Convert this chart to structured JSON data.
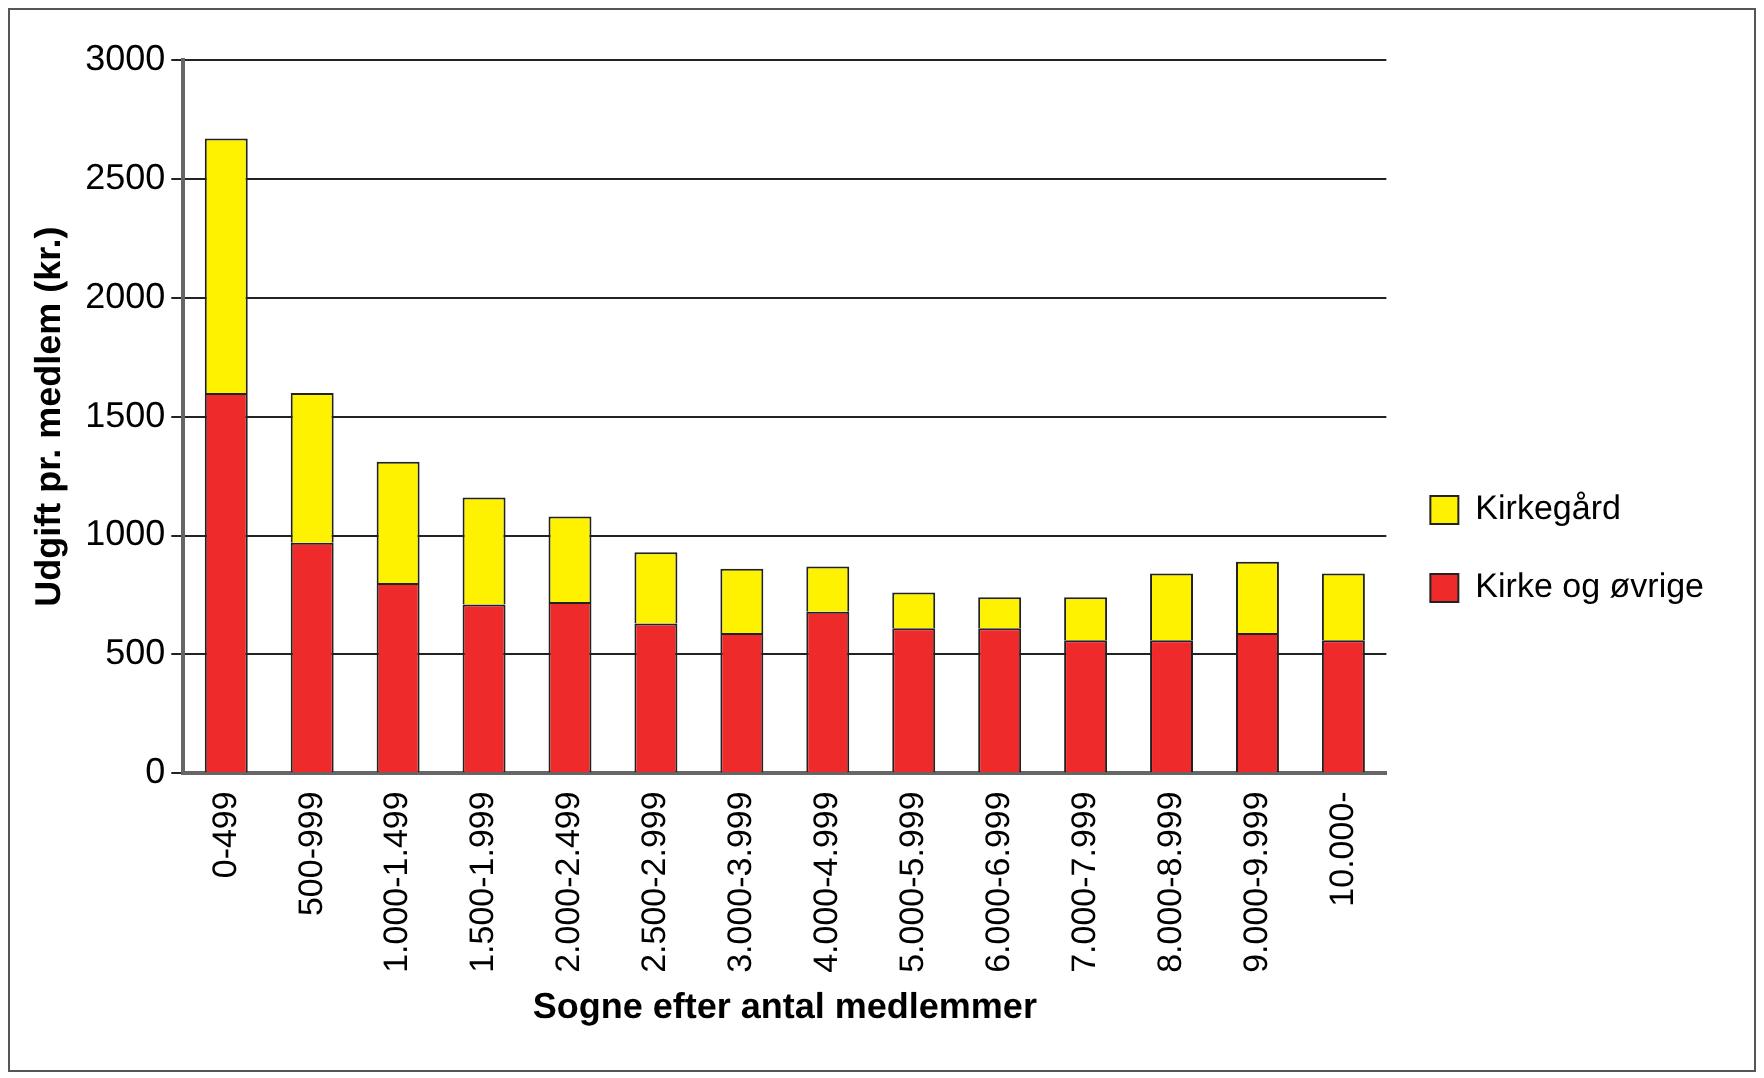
{
  "chart_data": {
    "type": "bar",
    "stacked": true,
    "xlabel": "Sogne efter antal medlemmer",
    "ylabel": "Udgift pr. medlem (kr.)",
    "categories": [
      "0-499",
      "500-999",
      "1.000-1.499",
      "1.500-1.999",
      "2.000-2.499",
      "2.500-2.999",
      "3.000-3.999",
      "4.000-4.999",
      "5.000-5.999",
      "6.000-6.999",
      "7.000-7.999",
      "8.000-8.999",
      "9.000-9.999",
      "10.000-"
    ],
    "series": [
      {
        "name": "Kirke og øvrige",
        "color": "#ee2a2a",
        "values": [
          1600,
          970,
          800,
          710,
          720,
          630,
          590,
          680,
          610,
          610,
          560,
          560,
          590,
          560
        ]
      },
      {
        "name": "Kirkegård",
        "color": "#fff200",
        "values": [
          1070,
          630,
          510,
          450,
          360,
          300,
          270,
          190,
          150,
          130,
          180,
          280,
          300,
          280
        ]
      }
    ],
    "ylim": [
      0,
      3000
    ],
    "yticks": [
      0,
      500,
      1000,
      1500,
      2000,
      2500,
      3000
    ],
    "grid": "y",
    "legend": "right"
  }
}
